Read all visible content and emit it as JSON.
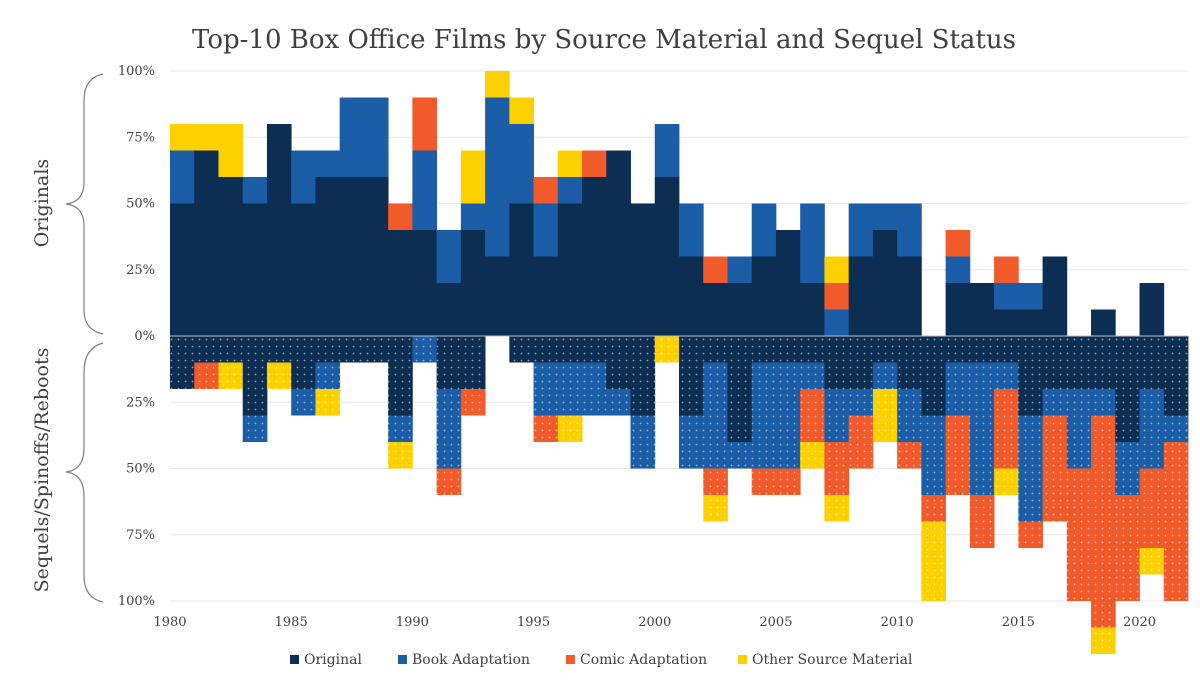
{
  "chart_data": {
    "type": "bar",
    "title": "Top-10 Box Office Films by Source Material and Sequel Status",
    "group_labels": {
      "top": "Originals",
      "bottom": "Sequels/Spinoffs/Reboots"
    },
    "y_ticks_top": [
      "100%",
      "75%",
      "50%",
      "25%",
      "0%"
    ],
    "y_ticks_bottom": [
      "25%",
      "50%",
      "75%",
      "100%"
    ],
    "x_ticks": [
      "1980",
      "1985",
      "1990",
      "1995",
      "2000",
      "2005",
      "2010",
      "2015",
      "2020"
    ],
    "xlim": [
      1980,
      2021
    ],
    "colors": {
      "original": "#0c2e52",
      "book": "#1b5ea7",
      "comic": "#f15a2b",
      "other": "#fdd000"
    },
    "legend": [
      "Original",
      "Book Adaptation",
      "Comic Adaptation",
      "Other Source Material"
    ],
    "years": [
      1980,
      1981,
      1982,
      1983,
      1984,
      1985,
      1986,
      1987,
      1988,
      1989,
      1990,
      1991,
      1992,
      1993,
      1994,
      1995,
      1996,
      1997,
      1998,
      1999,
      2000,
      2001,
      2002,
      2003,
      2004,
      2005,
      2006,
      2007,
      2008,
      2009,
      2010,
      2011,
      2012,
      2013,
      2014,
      2015,
      2016,
      2017,
      2018,
      2019,
      2020,
      2021
    ],
    "originals": {
      "original": [
        50,
        70,
        60,
        50,
        80,
        50,
        60,
        60,
        60,
        40,
        40,
        20,
        40,
        30,
        50,
        30,
        50,
        60,
        70,
        50,
        60,
        30,
        20,
        20,
        30,
        40,
        20,
        0,
        30,
        40,
        30,
        0,
        20,
        20,
        10,
        10,
        30,
        0,
        10,
        0,
        20,
        0
      ],
      "book": [
        20,
        0,
        0,
        10,
        0,
        20,
        10,
        30,
        30,
        0,
        30,
        20,
        10,
        60,
        30,
        20,
        10,
        0,
        0,
        0,
        20,
        20,
        0,
        10,
        20,
        0,
        30,
        10,
        20,
        10,
        20,
        0,
        10,
        0,
        10,
        10,
        0,
        0,
        0,
        0,
        0,
        0
      ],
      "comic": [
        0,
        0,
        0,
        0,
        0,
        0,
        0,
        0,
        0,
        10,
        20,
        0,
        0,
        0,
        0,
        10,
        0,
        10,
        0,
        0,
        0,
        0,
        10,
        0,
        0,
        0,
        0,
        10,
        0,
        0,
        0,
        0,
        10,
        0,
        10,
        0,
        0,
        0,
        0,
        0,
        0,
        0
      ],
      "other": [
        10,
        10,
        20,
        0,
        0,
        0,
        0,
        0,
        0,
        0,
        0,
        0,
        20,
        10,
        10,
        0,
        10,
        0,
        0,
        0,
        0,
        0,
        0,
        0,
        0,
        0,
        0,
        10,
        0,
        0,
        0,
        0,
        0,
        0,
        0,
        0,
        0,
        0,
        0,
        0,
        0,
        0
      ]
    },
    "sequels": {
      "original": [
        20,
        10,
        10,
        30,
        10,
        20,
        10,
        10,
        10,
        30,
        0,
        20,
        20,
        0,
        10,
        10,
        10,
        10,
        20,
        30,
        0,
        30,
        10,
        40,
        10,
        10,
        10,
        20,
        20,
        10,
        20,
        30,
        10,
        10,
        10,
        30,
        20,
        20,
        20,
        40,
        20,
        30
      ],
      "book": [
        0,
        0,
        0,
        10,
        0,
        10,
        10,
        0,
        0,
        10,
        10,
        30,
        0,
        0,
        0,
        20,
        20,
        20,
        10,
        20,
        0,
        20,
        40,
        10,
        40,
        40,
        10,
        20,
        10,
        10,
        20,
        30,
        20,
        50,
        10,
        40,
        10,
        30,
        10,
        20,
        30,
        10
      ],
      "comic": [
        0,
        10,
        0,
        0,
        0,
        0,
        0,
        0,
        0,
        0,
        0,
        10,
        10,
        0,
        0,
        10,
        0,
        0,
        0,
        0,
        0,
        0,
        10,
        0,
        10,
        10,
        20,
        20,
        20,
        0,
        10,
        10,
        30,
        20,
        30,
        10,
        40,
        50,
        80,
        40,
        30,
        60
      ],
      "other": [
        0,
        0,
        10,
        0,
        10,
        0,
        10,
        0,
        0,
        10,
        0,
        0,
        0,
        0,
        0,
        0,
        10,
        0,
        0,
        0,
        10,
        0,
        10,
        0,
        0,
        0,
        10,
        10,
        0,
        20,
        0,
        30,
        0,
        0,
        10,
        0,
        0,
        0,
        10,
        0,
        10,
        0
      ]
    }
  }
}
